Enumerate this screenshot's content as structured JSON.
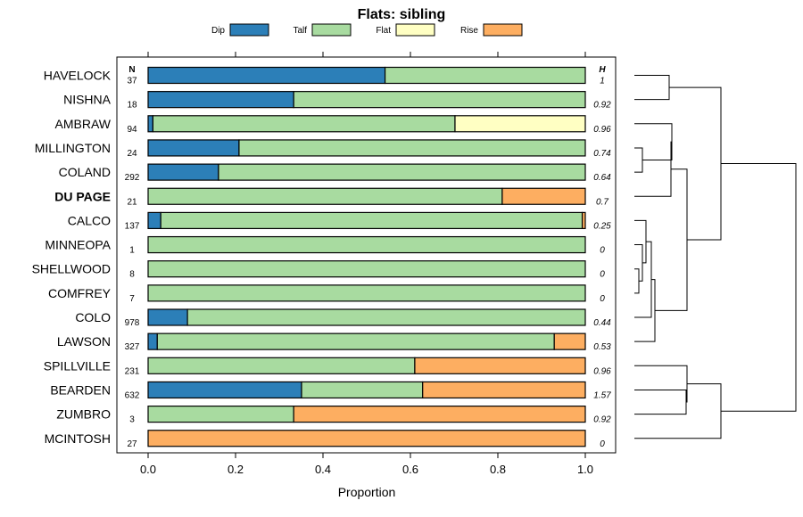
{
  "chart_data": {
    "type": "bar",
    "orientation": "horizontal",
    "stacked": true,
    "title": "Flats: sibling",
    "xlabel": "Proportion",
    "xlim": [
      0,
      1
    ],
    "xticks": [
      0,
      0.2,
      0.4,
      0.6,
      0.8,
      1
    ],
    "xtick_labels": [
      "0.0",
      "0.2",
      "0.4",
      "0.6",
      "0.8",
      "1.0"
    ],
    "legend_position": "top",
    "n_header": "N",
    "h_header": "H",
    "series": [
      {
        "name": "Dip",
        "color": "#2c7fb8"
      },
      {
        "name": "Talf",
        "color": "#a8dba0"
      },
      {
        "name": "Flat",
        "color": "#ffffc3"
      },
      {
        "name": "Rise",
        "color": "#fdae61"
      }
    ],
    "rows": [
      {
        "label": "HAVELOCK",
        "bold": false,
        "n": "37",
        "h": "1",
        "values": [
          0.542,
          0.458,
          0,
          0
        ]
      },
      {
        "label": "NISHNA",
        "bold": false,
        "n": "18",
        "h": "0.92",
        "values": [
          0.333,
          0.667,
          0,
          0
        ]
      },
      {
        "label": "AMBRAW",
        "bold": false,
        "n": "94",
        "h": "0.96",
        "values": [
          0.011,
          0.691,
          0.298,
          0
        ]
      },
      {
        "label": "MILLINGTON",
        "bold": false,
        "n": "24",
        "h": "0.74",
        "values": [
          0.208,
          0.792,
          0,
          0
        ]
      },
      {
        "label": "COLAND",
        "bold": false,
        "n": "292",
        "h": "0.64",
        "values": [
          0.161,
          0.839,
          0,
          0
        ]
      },
      {
        "label": "DU PAGE",
        "bold": true,
        "n": "21",
        "h": "0.7",
        "values": [
          0,
          0.81,
          0,
          0.19
        ]
      },
      {
        "label": "CALCO",
        "bold": false,
        "n": "137",
        "h": "0.25",
        "values": [
          0.029,
          0.964,
          0,
          0.007
        ]
      },
      {
        "label": "MINNEOPA",
        "bold": false,
        "n": "1",
        "h": "0",
        "values": [
          0,
          1,
          0,
          0
        ]
      },
      {
        "label": "SHELLWOOD",
        "bold": false,
        "n": "8",
        "h": "0",
        "values": [
          0,
          1,
          0,
          0
        ]
      },
      {
        "label": "COMFREY",
        "bold": false,
        "n": "7",
        "h": "0",
        "values": [
          0,
          1,
          0,
          0
        ]
      },
      {
        "label": "COLO",
        "bold": false,
        "n": "978",
        "h": "0.44",
        "values": [
          0.09,
          0.91,
          0,
          0
        ]
      },
      {
        "label": "LAWSON",
        "bold": false,
        "n": "327",
        "h": "0.53",
        "values": [
          0.021,
          0.908,
          0,
          0.071
        ]
      },
      {
        "label": "SPILLVILLE",
        "bold": false,
        "n": "231",
        "h": "0.96",
        "values": [
          0,
          0.61,
          0,
          0.39
        ]
      },
      {
        "label": "BEARDEN",
        "bold": false,
        "n": "632",
        "h": "1.57",
        "values": [
          0.351,
          0.277,
          0,
          0.372
        ]
      },
      {
        "label": "ZUMBRO",
        "bold": false,
        "n": "3",
        "h": "0.92",
        "values": [
          0,
          0.333,
          0,
          0.667
        ]
      },
      {
        "label": "MCINTOSH",
        "bold": false,
        "n": "27",
        "h": "0",
        "values": [
          0,
          0,
          0,
          1
        ]
      }
    ]
  }
}
